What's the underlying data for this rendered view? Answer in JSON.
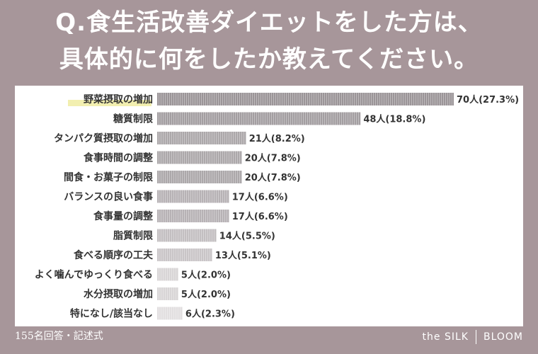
{
  "title": {
    "line1": "Q.食生活改善ダイエットをした方は、",
    "line2": "具体的に何をしたか教えてください。"
  },
  "footer": {
    "note": "155名回答・記述式",
    "brand_left": "the SILK",
    "brand_right": "BLOOM"
  },
  "colors": {
    "background": "#a7969a",
    "panel": "#ffffff",
    "highlight": "#f2efb0"
  },
  "chart_data": {
    "type": "bar",
    "orientation": "horizontal",
    "categories": [
      "野菜摂取の増加",
      "糖質制限",
      "タンパク質摂取の増加",
      "食事時間の調整",
      "間食・お菓子の制限",
      "バランスの良い食事",
      "食事量の調整",
      "脂質制限",
      "食べる順序の工夫",
      "よく噛んでゆっくり食べる",
      "水分摂取の増加",
      "特になし/該当なし"
    ],
    "values": [
      70,
      48,
      21,
      20,
      20,
      17,
      17,
      14,
      13,
      5,
      5,
      6
    ],
    "value_labels": [
      "70人(27.3%)",
      "48人(18.8%)",
      "21人(8.2%)",
      "20人(7.8%)",
      "20人(7.8%)",
      "17人(6.6%)",
      "17人(6.6%)",
      "14人(5.5%)",
      "13人(5.1%)",
      "5人(2.0%)",
      "5人(2.0%)",
      "6人(2.3%)"
    ],
    "bar_colors": [
      "#9b9598",
      "#a39ea1",
      "#aca8aa",
      "#aca8aa",
      "#aca8aa",
      "#b7b2b5",
      "#b7b2b5",
      "#c3bfc1",
      "#c9c5c7",
      "#d8d5d6",
      "#d8d5d6",
      "#e2dfe0"
    ],
    "highlight_index": 0,
    "xlim": [
      0,
      70
    ]
  }
}
